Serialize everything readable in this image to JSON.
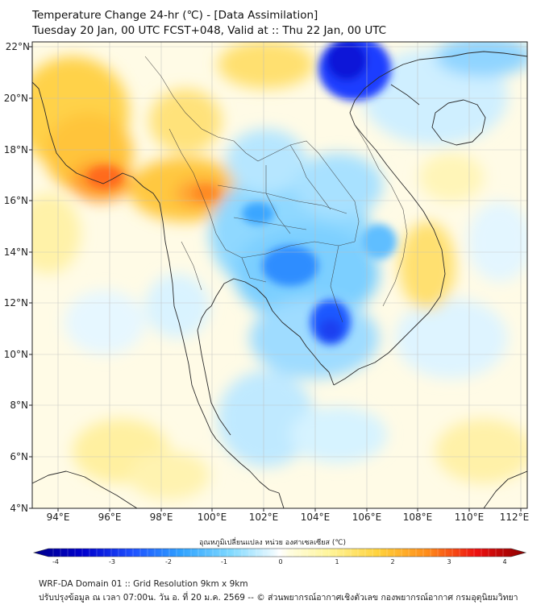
{
  "header": {
    "title_line1": "Temperature Change 24-hr (℃) - [Data Assimilation]",
    "title_line2": "Tuesday 20 Jan, 00 UTC FCST+048, Valid at :: Thu 22 Jan, 00 UTC"
  },
  "map": {
    "lon_range": [
      93,
      112.3
    ],
    "lat_range": [
      4,
      22.3
    ],
    "lon_ticks": [
      "94°E",
      "96°E",
      "98°E",
      "100°E",
      "102°E",
      "104°E",
      "106°E",
      "108°E",
      "110°E",
      "112°E"
    ],
    "lat_ticks": [
      "22°N",
      "20°N",
      "18°N",
      "16°N",
      "14°N",
      "12°N",
      "10°N",
      "8°N",
      "6°N",
      "4°N"
    ],
    "gridlines": true
  },
  "colorbar": {
    "title": "อุณหภูมิเปลี่ยนแปลง หน่วย องศาเซลเซียส (℃)",
    "ticks": [
      "-4",
      "-3",
      "-2",
      "-1",
      "0",
      "1",
      "2",
      "3",
      "4"
    ],
    "range": [
      -4,
      4
    ]
  },
  "footer": {
    "line1": "WRF-DA Domain 01 :: Grid Resolution 9km x 9km",
    "line2": "ปรับปรุงข้อมูล ณ เวลา 07:00น. วัน อ. ที่ 20 ม.ค. 2569 -- © ส่วนพยากรณ์อากาศเชิงตัวเลข กองพยากรณ์อากาศ กรมอุตุนิยมวิทยา"
  }
}
